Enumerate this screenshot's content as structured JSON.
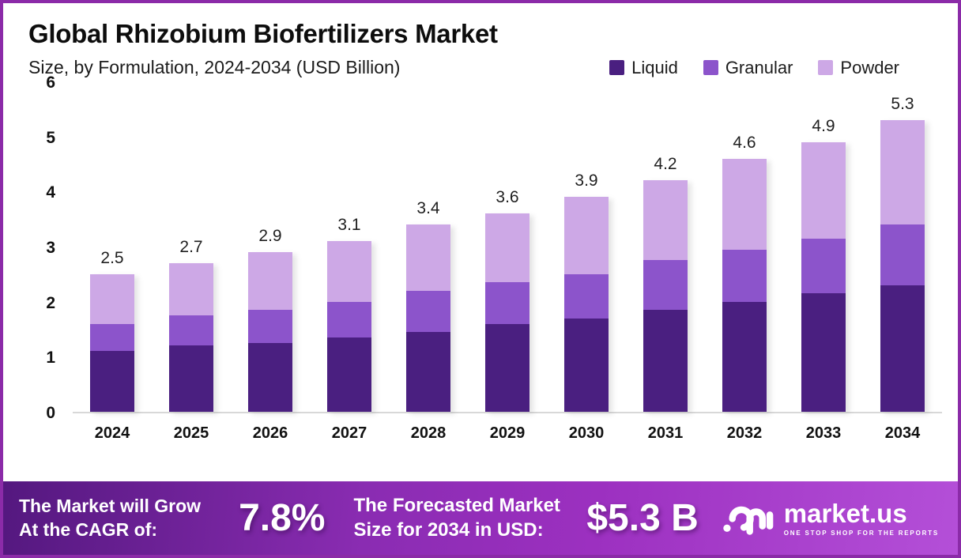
{
  "title": "Global Rhizobium Biofertilizers Market",
  "subtitle": "Size, by Formulation, 2024-2034 (USD Billion)",
  "legend": [
    {
      "label": "Liquid",
      "color": "#4a1f80"
    },
    {
      "label": "Granular",
      "color": "#8c54cb"
    },
    {
      "label": "Powder",
      "color": "#cda8e6"
    }
  ],
  "chart_data": {
    "type": "bar",
    "stacked": true,
    "title": "Global Rhizobium Biofertilizers Market Size, by Formulation, 2024-2034 (USD Billion)",
    "categories": [
      "2024",
      "2025",
      "2026",
      "2027",
      "2028",
      "2029",
      "2030",
      "2031",
      "2032",
      "2033",
      "2034"
    ],
    "series": [
      {
        "name": "Liquid",
        "color": "#4a1f80",
        "values": [
          1.1,
          1.2,
          1.25,
          1.35,
          1.45,
          1.6,
          1.7,
          1.85,
          2.0,
          2.15,
          2.3
        ]
      },
      {
        "name": "Granular",
        "color": "#8c54cb",
        "values": [
          0.5,
          0.55,
          0.6,
          0.65,
          0.75,
          0.75,
          0.8,
          0.9,
          0.95,
          1.0,
          1.1
        ]
      },
      {
        "name": "Powder",
        "color": "#cda8e6",
        "values": [
          0.9,
          0.95,
          1.05,
          1.1,
          1.2,
          1.25,
          1.4,
          1.45,
          1.65,
          1.75,
          1.9
        ]
      }
    ],
    "totals": [
      2.5,
      2.7,
      2.9,
      3.1,
      3.4,
      3.6,
      3.9,
      4.2,
      4.6,
      4.9,
      5.3
    ],
    "xlabel": "",
    "ylabel": "",
    "ylim": [
      0,
      6
    ],
    "yticks": [
      0,
      1,
      2,
      3,
      4,
      5,
      6
    ],
    "grid": false,
    "legend_position": "top-right"
  },
  "footer": {
    "cagr_line1": "The Market will Grow",
    "cagr_line2": "At the CAGR of:",
    "cagr_value": "7.8%",
    "forecast_line1": "The Forecasted Market",
    "forecast_line2": "Size for 2034 in USD:",
    "forecast_value": "$5.3 B",
    "brand_name": "market.us",
    "brand_tagline": "ONE STOP SHOP FOR THE REPORTS"
  },
  "colors": {
    "frame_border": "#8b2ba8",
    "baseline": "#d8d8d8",
    "footer_gradient": [
      "#54187f",
      "#9c30c0",
      "#b44fd8"
    ]
  }
}
